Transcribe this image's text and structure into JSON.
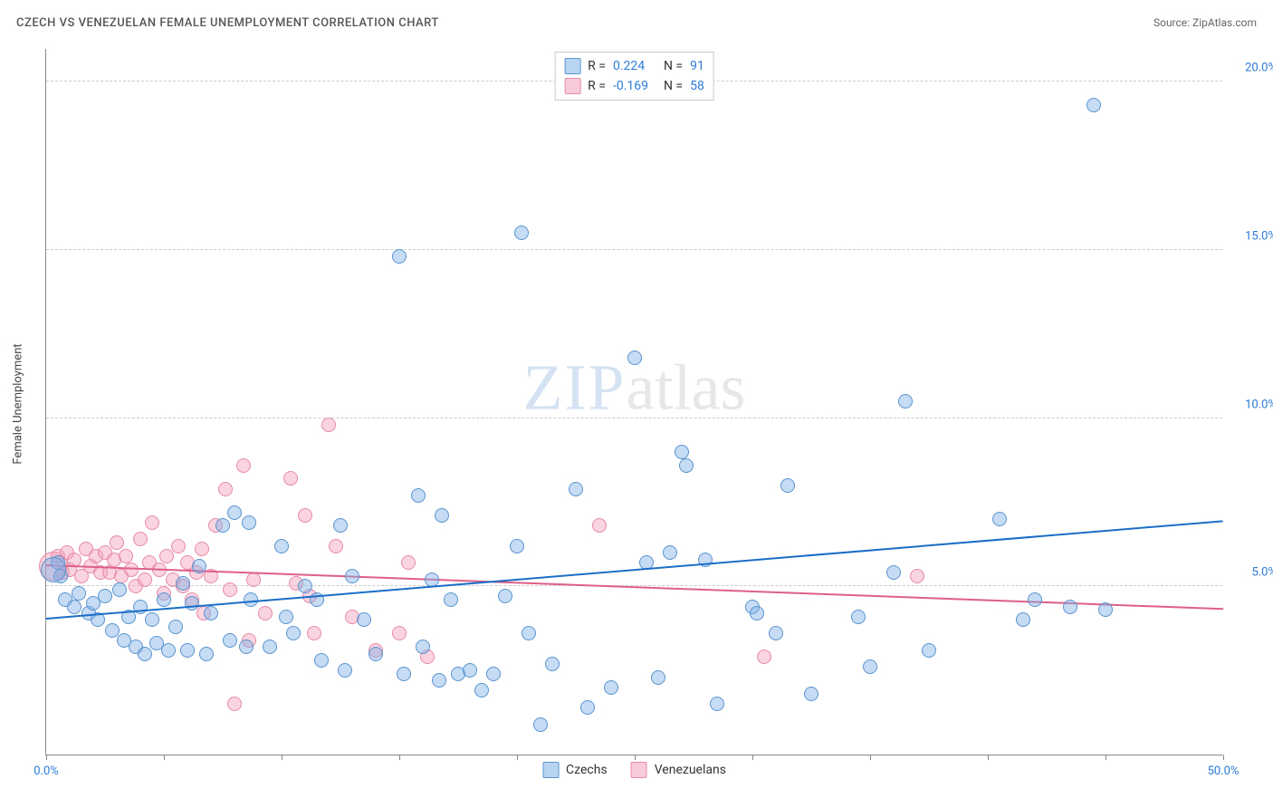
{
  "header": {
    "title": "CZECH VS VENEZUELAN FEMALE UNEMPLOYMENT CORRELATION CHART",
    "source_prefix": "Source: ",
    "source": "ZipAtlas.com"
  },
  "ylabel": "Female Unemployment",
  "watermark": {
    "part1": "ZIP",
    "part2": "atlas"
  },
  "chart": {
    "type": "scatter",
    "xlim": [
      0,
      50
    ],
    "ylim": [
      0,
      21
    ],
    "x_ticks": [
      0,
      5,
      10,
      15,
      20,
      25,
      30,
      35,
      40,
      45,
      50
    ],
    "x_tick_labels": {
      "0": "0.0%",
      "50": "50.0%"
    },
    "y_ticks": [
      5,
      10,
      15,
      20
    ],
    "y_tick_labels": {
      "5": "5.0%",
      "10": "10.0%",
      "15": "15.0%",
      "20": "20.0%"
    },
    "grid_color": "#cccccc",
    "axis_color": "#888888",
    "background_color": "#ffffff",
    "x_label_color": "#2b7bd6",
    "y_label_color": "#2b7bd6",
    "marker_base_radius": 8,
    "series": {
      "czechs": {
        "label": "Czechs",
        "fill": "rgba(128,176,230,0.45)",
        "stroke": "#5a94cf",
        "trend_color": "#1b6ec7",
        "trend_y_at_xmin": 4.0,
        "trend_y_at_xmax": 6.9,
        "points": [
          [
            0.5,
            5.7
          ],
          [
            0.6,
            5.3
          ],
          [
            0.3,
            5.5,
            14
          ],
          [
            0.8,
            4.6
          ],
          [
            1.2,
            4.4
          ],
          [
            1.4,
            4.8
          ],
          [
            1.8,
            4.2
          ],
          [
            2.0,
            4.5
          ],
          [
            2.2,
            4.0
          ],
          [
            2.5,
            4.7
          ],
          [
            2.8,
            3.7
          ],
          [
            3.1,
            4.9
          ],
          [
            3.3,
            3.4
          ],
          [
            3.5,
            4.1
          ],
          [
            3.8,
            3.2
          ],
          [
            4.0,
            4.4
          ],
          [
            4.2,
            3.0
          ],
          [
            4.5,
            4.0
          ],
          [
            4.7,
            3.3
          ],
          [
            5.0,
            4.6
          ],
          [
            5.2,
            3.1
          ],
          [
            5.5,
            3.8
          ],
          [
            5.8,
            5.1
          ],
          [
            6.0,
            3.1
          ],
          [
            6.2,
            4.5
          ],
          [
            6.5,
            5.6
          ],
          [
            6.8,
            3.0
          ],
          [
            7.0,
            4.2
          ],
          [
            7.5,
            6.8
          ],
          [
            7.8,
            3.4
          ],
          [
            8.0,
            7.2
          ],
          [
            8.5,
            3.2
          ],
          [
            8.7,
            4.6
          ],
          [
            8.6,
            6.9
          ],
          [
            9.5,
            3.2
          ],
          [
            10.0,
            6.2
          ],
          [
            10.2,
            4.1
          ],
          [
            10.5,
            3.6
          ],
          [
            11.0,
            5.0
          ],
          [
            11.5,
            4.6
          ],
          [
            11.7,
            2.8
          ],
          [
            12.5,
            6.8
          ],
          [
            12.7,
            2.5
          ],
          [
            13.0,
            5.3
          ],
          [
            13.5,
            4.0
          ],
          [
            14.0,
            3.0
          ],
          [
            15.0,
            14.8
          ],
          [
            15.2,
            2.4
          ],
          [
            15.8,
            7.7
          ],
          [
            16.0,
            3.2
          ],
          [
            16.4,
            5.2
          ],
          [
            16.7,
            2.2
          ],
          [
            16.8,
            7.1
          ],
          [
            17.2,
            4.6
          ],
          [
            17.5,
            2.4
          ],
          [
            18.0,
            2.5
          ],
          [
            18.5,
            1.9
          ],
          [
            19.0,
            2.4
          ],
          [
            19.5,
            4.7
          ],
          [
            20.0,
            6.2
          ],
          [
            20.2,
            15.5
          ],
          [
            20.5,
            3.6
          ],
          [
            21.0,
            0.9
          ],
          [
            21.5,
            2.7
          ],
          [
            22.5,
            7.9
          ],
          [
            23.0,
            1.4
          ],
          [
            24.0,
            2.0
          ],
          [
            25.0,
            11.8
          ],
          [
            25.5,
            5.7
          ],
          [
            26.0,
            2.3
          ],
          [
            26.5,
            6.0
          ],
          [
            27.0,
            9.0
          ],
          [
            27.2,
            8.6
          ],
          [
            28.0,
            5.8
          ],
          [
            28.5,
            1.5
          ],
          [
            30.0,
            4.4
          ],
          [
            30.2,
            4.2
          ],
          [
            31.0,
            3.6
          ],
          [
            31.5,
            8.0
          ],
          [
            32.5,
            1.8
          ],
          [
            34.5,
            4.1
          ],
          [
            35.0,
            2.6
          ],
          [
            36.0,
            5.4
          ],
          [
            36.5,
            10.5
          ],
          [
            37.5,
            3.1
          ],
          [
            40.5,
            7.0
          ],
          [
            41.5,
            4.0
          ],
          [
            42.0,
            4.6
          ],
          [
            43.5,
            4.4
          ],
          [
            44.5,
            19.3
          ],
          [
            45.0,
            4.3
          ]
        ]
      },
      "venezuelans": {
        "label": "Venezuelans",
        "fill": "rgba(244,160,185,0.45)",
        "stroke": "#e68aa8",
        "trend_color": "#de5f8a",
        "trend_y_at_xmin": 5.6,
        "trend_y_at_xmax": 4.3,
        "points": [
          [
            0.3,
            5.6,
            16
          ],
          [
            0.5,
            5.9
          ],
          [
            0.7,
            5.4
          ],
          [
            0.9,
            6.0
          ],
          [
            1.0,
            5.5
          ],
          [
            1.2,
            5.8
          ],
          [
            1.5,
            5.3
          ],
          [
            1.7,
            6.1
          ],
          [
            1.9,
            5.6
          ],
          [
            2.1,
            5.9
          ],
          [
            2.3,
            5.4
          ],
          [
            2.5,
            6.0
          ],
          [
            2.7,
            5.4
          ],
          [
            2.9,
            5.8
          ],
          [
            3.0,
            6.3
          ],
          [
            3.2,
            5.3
          ],
          [
            3.4,
            5.9
          ],
          [
            3.6,
            5.5
          ],
          [
            3.8,
            5.0
          ],
          [
            4.0,
            6.4
          ],
          [
            4.2,
            5.2
          ],
          [
            4.4,
            5.7
          ],
          [
            4.5,
            6.9
          ],
          [
            4.8,
            5.5
          ],
          [
            5.0,
            4.8
          ],
          [
            5.1,
            5.9
          ],
          [
            5.4,
            5.2
          ],
          [
            5.6,
            6.2
          ],
          [
            5.8,
            5.0
          ],
          [
            6.0,
            5.7
          ],
          [
            6.2,
            4.6
          ],
          [
            6.4,
            5.4
          ],
          [
            6.6,
            6.1
          ],
          [
            6.7,
            4.2
          ],
          [
            7.0,
            5.3
          ],
          [
            7.2,
            6.8
          ],
          [
            7.6,
            7.9
          ],
          [
            7.8,
            4.9
          ],
          [
            8.0,
            1.5
          ],
          [
            8.4,
            8.6
          ],
          [
            8.6,
            3.4
          ],
          [
            8.8,
            5.2
          ],
          [
            9.3,
            4.2
          ],
          [
            10.4,
            8.2
          ],
          [
            10.6,
            5.1
          ],
          [
            11.0,
            7.1
          ],
          [
            11.2,
            4.7
          ],
          [
            11.4,
            3.6
          ],
          [
            12.0,
            9.8
          ],
          [
            12.3,
            6.2
          ],
          [
            13.0,
            4.1
          ],
          [
            14.0,
            3.1
          ],
          [
            15.0,
            3.6
          ],
          [
            15.4,
            5.7
          ],
          [
            16.2,
            2.9
          ],
          [
            23.5,
            6.8
          ],
          [
            30.5,
            2.9
          ],
          [
            37.0,
            5.3
          ]
        ]
      }
    }
  },
  "legend_top": {
    "rows": [
      {
        "swatch_fill": "rgba(128,176,230,0.55)",
        "swatch_stroke": "#5a94cf",
        "r_label": "R =",
        "r_val": "0.224",
        "n_label": "N =",
        "n_val": "91"
      },
      {
        "swatch_fill": "rgba(244,160,185,0.55)",
        "swatch_stroke": "#e68aa8",
        "r_label": "R =",
        "r_val": "-0.169",
        "n_label": "N =",
        "n_val": "58"
      }
    ]
  },
  "legend_bottom": {
    "items": [
      {
        "swatch_fill": "rgba(128,176,230,0.55)",
        "swatch_stroke": "#5a94cf",
        "label": "Czechs"
      },
      {
        "swatch_fill": "rgba(244,160,185,0.55)",
        "swatch_stroke": "#e68aa8",
        "label": "Venezuelans"
      }
    ]
  }
}
